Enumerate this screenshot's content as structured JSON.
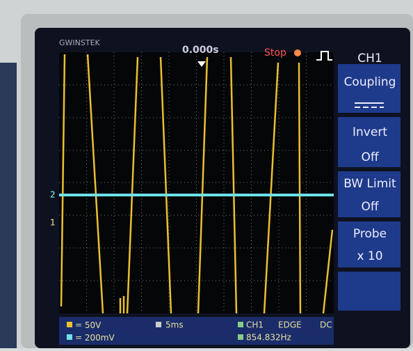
{
  "header": {
    "brand": "GWINSTEK",
    "timebase_offset": "0.000s",
    "status": "Stop"
  },
  "markers": {
    "ch2": "2",
    "ch1": "1"
  },
  "menu": {
    "title": "CH1",
    "items": [
      {
        "label": "Coupling"
      },
      {
        "label": "Invert",
        "value": "Off"
      },
      {
        "label": "BW Limit",
        "value": "Off"
      },
      {
        "label": "Probe",
        "value": "x 10"
      }
    ]
  },
  "footer": {
    "ch1_scale": "50V",
    "ch2_scale": "200mV",
    "timebase": "5ms",
    "trigger_source": "CH1",
    "trigger_type": "EDGE",
    "trigger_coupling": "DC",
    "frequency": "854.832Hz"
  }
}
